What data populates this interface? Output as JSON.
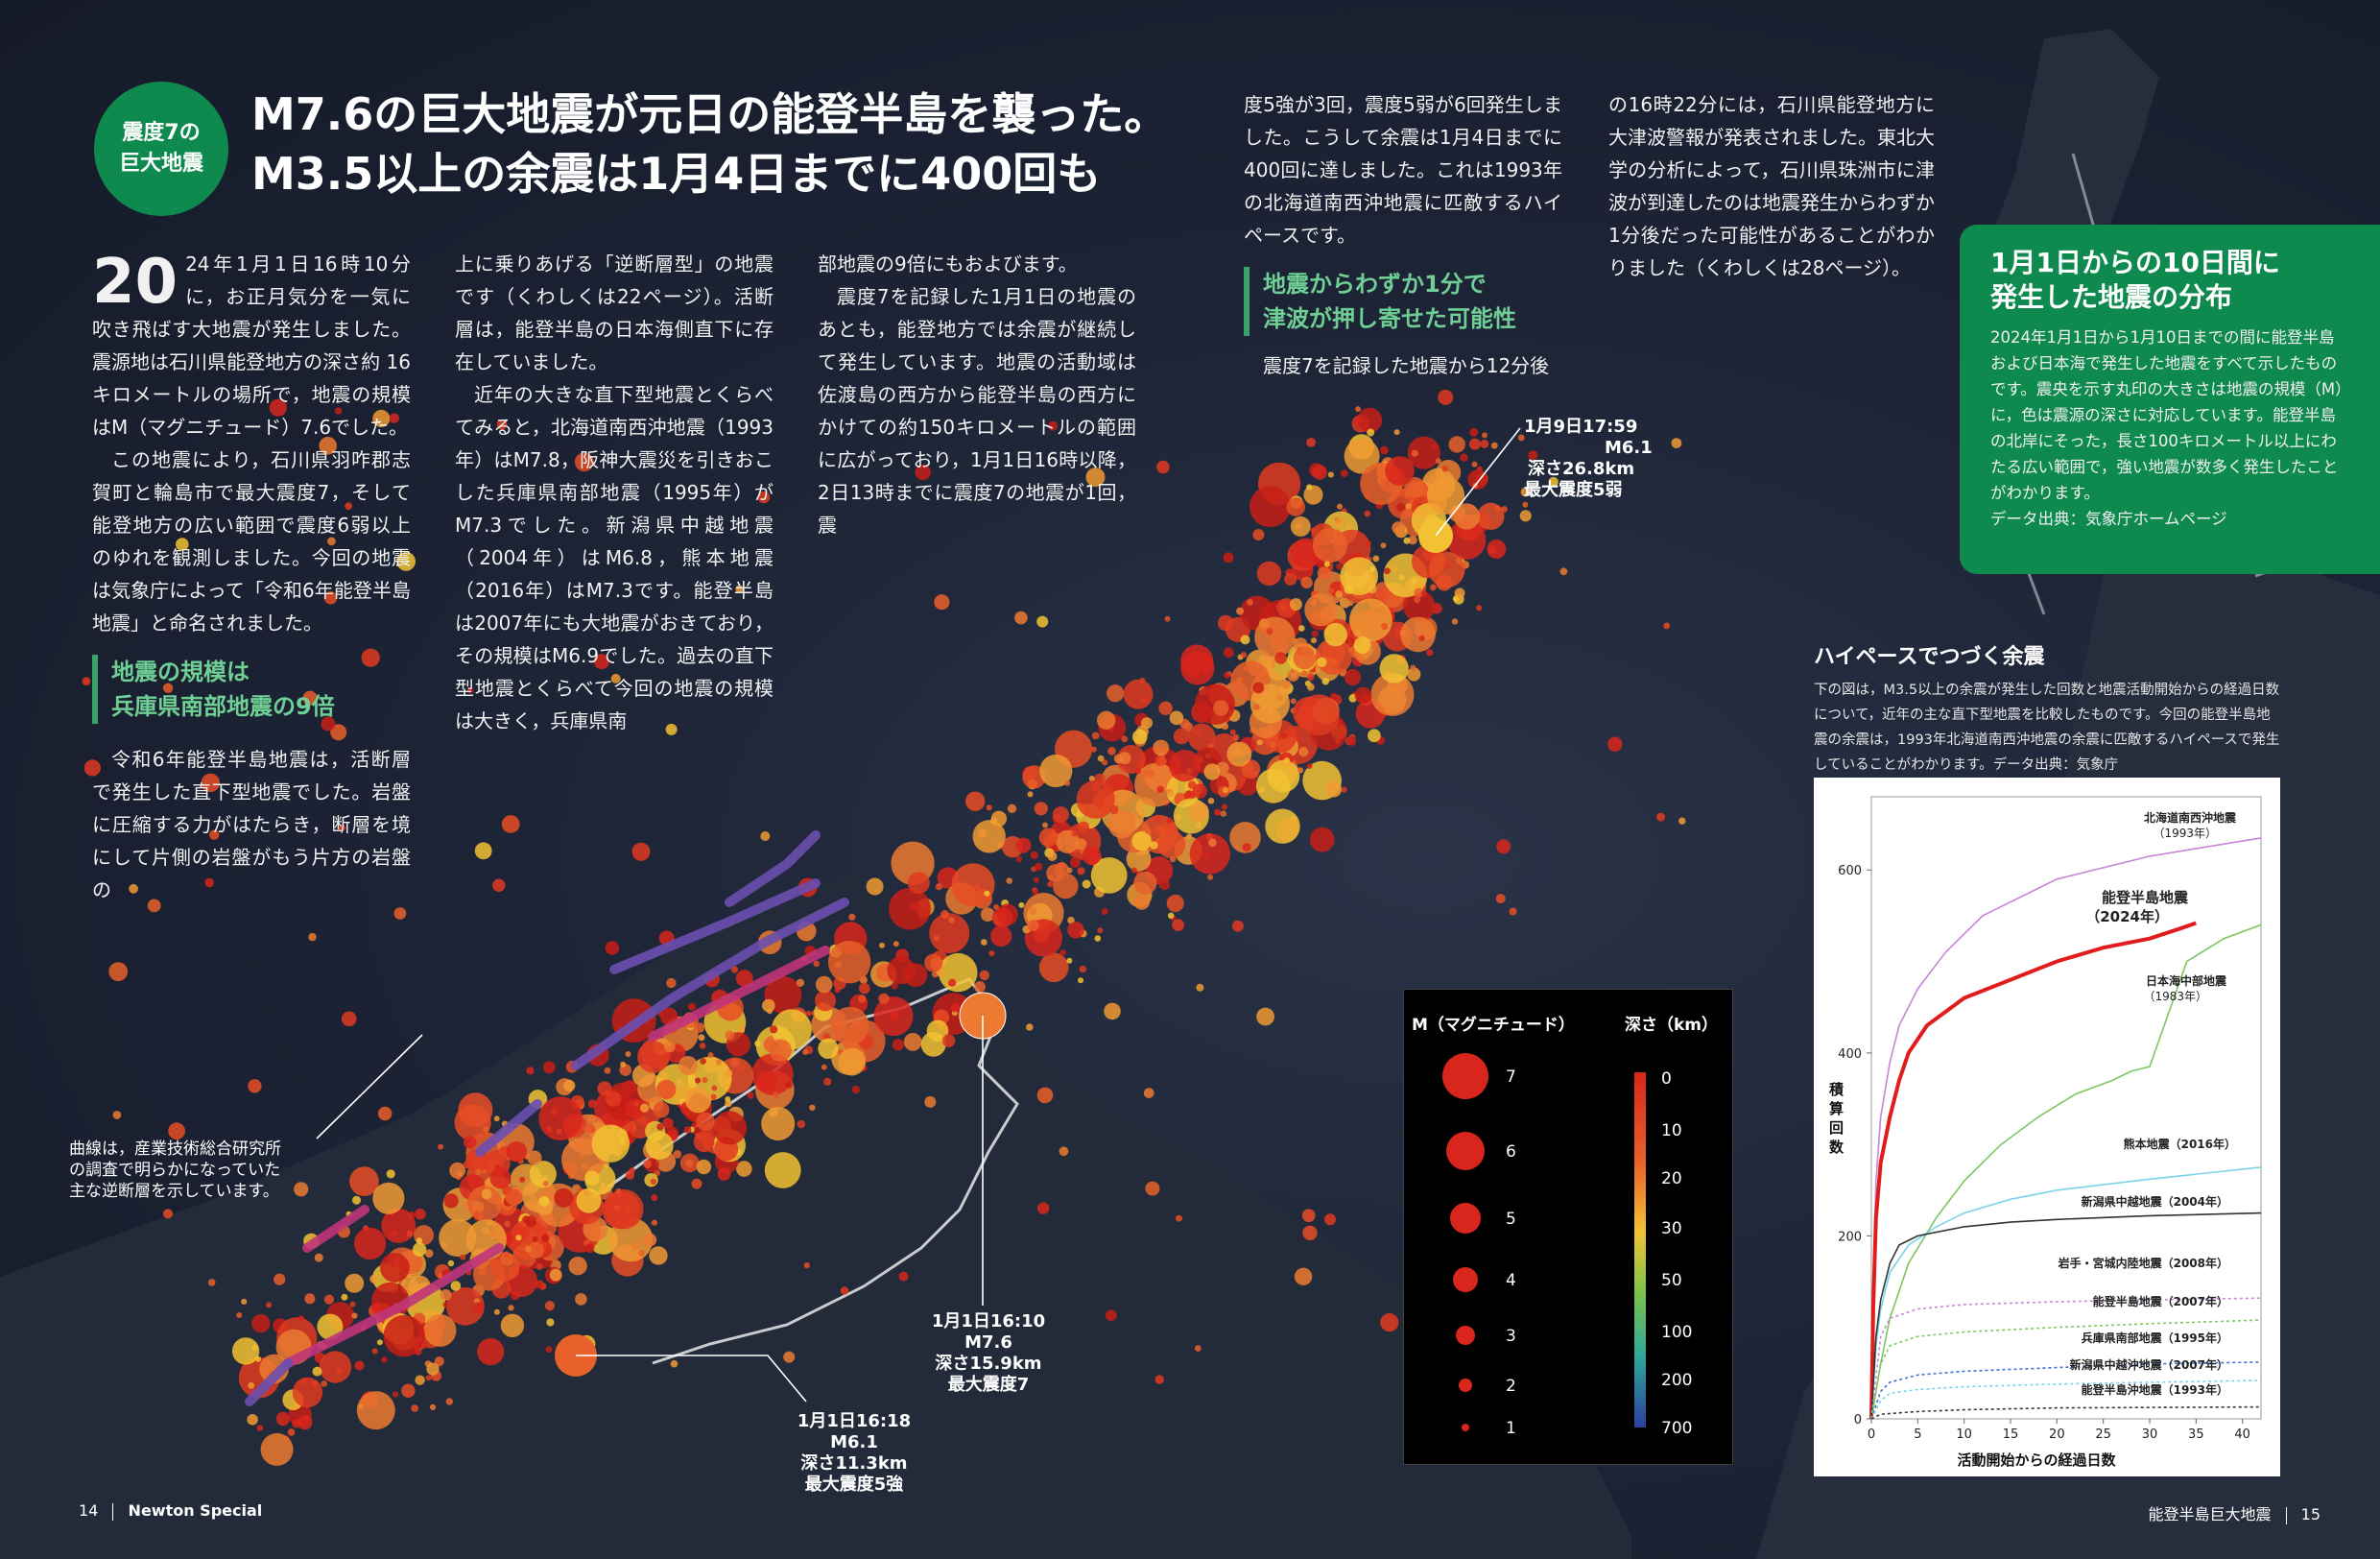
{
  "header": {
    "badge_line1": "震度7の",
    "badge_line2": "巨大地震",
    "title_line1": "M7.6の巨大地震が元日の能登半島を襲った。",
    "title_line2": "M3.5以上の余震は1月4日までに400回も"
  },
  "article": {
    "dropcap": "20",
    "col1_p1": "24年1月1日16時10分に，お正月気分を一気に吹き飛ばす大地震が発生しました。震源地は石川県能登地方の深さ約 16キロメートルの場所で，地震の規模はM（マグニチュード）7.6でした。",
    "col1_p2": "この地震により，石川県羽咋郡志賀町と輪島市で最大震度7，そして能登地方の広い範囲で震度6弱以上のゆれを観測しました。今回の地震は気象庁によって「令和6年能登半島地震」と命名されました。",
    "subhead1_line1": "地震の規模は",
    "subhead1_line2": "兵庫県南部地震の9倍",
    "col1_p3": "令和6年能登半島地震は，活断層で発生した直下型地震でした。岩盤に圧縮する力がはたらき，断層を境にして片側の岩盤がもう片方の岩盤の",
    "col2_p1": "上に乗りあげる「逆断層型」の地震です（くわしくは22ページ）。活断層は，能登半島の日本海側直下に存在していました。",
    "col2_p2": "近年の大きな直下型地震とくらべてみると，北海道南西沖地震（1993年）はM7.8，阪神大震災を引きおこした兵庫県南部地震（1995年）がM7.3でした。新潟県中越地震（2004年）はM6.8，熊本地震（2016年）はM7.3です。能登半島は2007年にも大地震がおきており，その規模はM6.9でした。過去の直下型地震とくらべて今回の地震の規模は大きく，兵庫県南",
    "col3_p1": "部地震の9倍にもおよびます。",
    "col3_p2": "震度7を記録した1月1日の地震のあとも，能登地方では余震が継続して発生しています。地震の活動域は佐渡島の西方から能登半島の西方にかけての約150キロメートルの範囲に広がっており，1月1日16時以降，2日13時までに震度7の地震が1回，震",
    "col4_p1": "度5強が3回，震度5弱が6回発生しました。こうして余震は1月4日までに400回に達しました。これは1993年の北海道南西沖地震に匹敵するハイペースです。",
    "subhead2_line1": "地震からわずか1分で",
    "subhead2_line2": "津波が押し寄せた可能性",
    "col4_p2": "震度7を記録した地震から12分後",
    "col5_p1": "の16時22分には，石川県能登地方に大津波警報が発表されました。東北大学の分析によって，石川県珠洲市に津波が到達したのは地震発生からわずか1分後だった可能性があることがわかりました（くわしくは28ページ）。"
  },
  "distribution_box": {
    "title_line1": "1月1日からの10日間に",
    "title_line2": "発生した地震の分布",
    "body": "2024年1月1日から1月10日までの間に能登半島および日本海で発生した地震をすべて示したものです。震央を示す丸印の大きさは地震の規模（M）に，色は震源の深さに対応しています。能登半島の北岸にそった，長さ100キロメートル以上にわたる広い範囲で，強い地震が数多く発生したことがわかります。",
    "source": "データ出典：気象庁ホームページ"
  },
  "annotations": {
    "quake_jan9": [
      "1月9日17:59",
      "M6.1",
      "深さ26.8km",
      "最大震度5弱"
    ],
    "quake_main": [
      "1月1日16:10",
      "M7.6",
      "深さ15.9km",
      "最大震度7"
    ],
    "quake_1618": [
      "1月1日16:18",
      "M6.1",
      "深さ11.3km",
      "最大震度5強"
    ],
    "fault_note": [
      "曲線は，産業技術総合研究所",
      "の調査で明らかになっていた",
      "主な逆断層を示しています。"
    ]
  },
  "legend": {
    "magnitude_header": "M（マグニチュード）",
    "depth_header": "深さ（km）",
    "magnitudes": [
      "7",
      "6",
      "5",
      "4",
      "3",
      "2",
      "1"
    ],
    "depth_ticks": [
      "0",
      "10",
      "20",
      "30",
      "50",
      "100",
      "200",
      "700"
    ]
  },
  "graph_section": {
    "title": "ハイペースでつづく余震",
    "desc": "下の図は，M3.5以上の余震が発生した回数と地震活動開始からの経過日数について，近年の主な直下型地震を比較したものです。今回の能登半島地震の余震は，1993年北海道南西沖地震の余震に匹敵するハイペースで発生していることがわかります。データ出典：気象庁"
  },
  "chart_data": {
    "type": "line",
    "xlabel": "活動開始からの経過日数",
    "ylabel": "積算回数",
    "xlim": [
      0,
      42
    ],
    "ylim": [
      0,
      680
    ],
    "xticks": [
      "0",
      "5",
      "10",
      "15",
      "20",
      "25",
      "30",
      "35",
      "40"
    ],
    "yticks": [
      "0",
      "200",
      "400",
      "600"
    ],
    "series": [
      {
        "name": "北海道南西沖地震（1993年）",
        "color": "#c586d6",
        "x": [
          0,
          0.2,
          0.5,
          1,
          2,
          3,
          5,
          8,
          12,
          20,
          30,
          42
        ],
        "y": [
          0,
          150,
          260,
          330,
          390,
          430,
          470,
          510,
          550,
          590,
          615,
          635
        ]
      },
      {
        "name": "能登半島地震（2024年）",
        "color": "#e01c1c",
        "x": [
          0,
          0.2,
          0.5,
          1,
          2,
          3,
          4,
          6,
          10,
          15,
          20,
          25,
          30,
          33,
          35
        ],
        "y": [
          0,
          120,
          220,
          280,
          330,
          370,
          400,
          430,
          460,
          480,
          500,
          515,
          525,
          535,
          542
        ]
      },
      {
        "name": "日本海中部地震（1983年）",
        "color": "#7cc760",
        "x": [
          0,
          1,
          2,
          4,
          7,
          10,
          14,
          18,
          22,
          26,
          28,
          30,
          34,
          38,
          42
        ],
        "y": [
          0,
          60,
          110,
          170,
          220,
          260,
          300,
          330,
          355,
          370,
          380,
          385,
          500,
          525,
          540
        ]
      },
      {
        "name": "熊本地震（2016年）",
        "color": "#7bd3ea",
        "x": [
          0,
          0.5,
          1,
          2,
          4,
          7,
          10,
          15,
          20,
          30,
          42
        ],
        "y": [
          0,
          80,
          120,
          160,
          190,
          210,
          225,
          240,
          250,
          262,
          275
        ]
      },
      {
        "name": "新潟県中越地震（2004年）",
        "color": "#333333",
        "x": [
          0,
          0.5,
          1,
          2,
          3,
          5,
          10,
          15,
          20,
          30,
          42
        ],
        "y": [
          0,
          90,
          130,
          170,
          190,
          200,
          210,
          215,
          218,
          222,
          225
        ]
      },
      {
        "name": "岩手・宮城内陸地震（2008年）",
        "color": "#c586d6",
        "x": [
          0,
          1,
          2,
          5,
          10,
          20,
          30,
          42
        ],
        "y": [
          0,
          90,
          110,
          120,
          125,
          128,
          130,
          132
        ]
      },
      {
        "name": "能登半島地震（2007年）",
        "color": "#7cc760",
        "x": [
          0,
          1,
          2,
          5,
          10,
          20,
          30,
          42
        ],
        "y": [
          0,
          60,
          80,
          90,
          95,
          100,
          104,
          108
        ]
      },
      {
        "name": "兵庫県南部地震（1995年）",
        "color": "#3b6fd6",
        "x": [
          0,
          1,
          2,
          5,
          10,
          20,
          30,
          42
        ],
        "y": [
          0,
          30,
          40,
          48,
          52,
          56,
          60,
          62
        ]
      },
      {
        "name": "新潟県中越沖地震（2007年）",
        "color": "#7bd3ea",
        "x": [
          0,
          1,
          2,
          5,
          10,
          20,
          30,
          42
        ],
        "y": [
          0,
          20,
          28,
          32,
          35,
          38,
          40,
          42
        ]
      },
      {
        "name": "能登半島沖地震（1993年）",
        "color": "#333333",
        "x": [
          0,
          1,
          5,
          10,
          20,
          42
        ],
        "y": [
          0,
          5,
          8,
          10,
          12,
          13
        ]
      }
    ]
  },
  "footer": {
    "left_page": "14",
    "left_label": "Newton Special",
    "right_label": "能登半島巨大地震",
    "right_page": "15"
  },
  "colors": {
    "accent_green": "#0f8a4f",
    "subhead_green": "#6fcf95",
    "quake_red": "#d9261c",
    "quake_orange": "#e8602a",
    "quake_yellow": "#f2c233"
  }
}
